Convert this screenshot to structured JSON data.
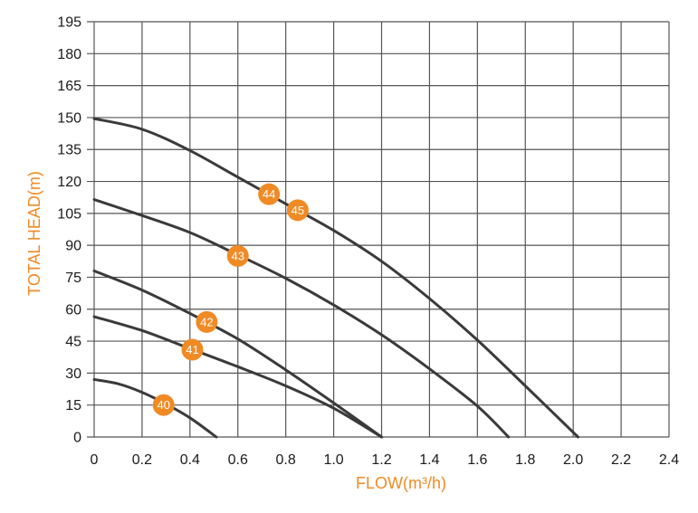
{
  "chart_data": {
    "type": "line",
    "xlabel": "FLOW(m³/h)",
    "ylabel": "TOTAL HEAD(m)",
    "xlim": [
      0,
      2.4
    ],
    "ylim": [
      0,
      195
    ],
    "x_ticks": [
      "0",
      "0.2",
      "0.4",
      "0.6",
      "0.8",
      "1.0",
      "1.2",
      "1.4",
      "1.6",
      "1.8",
      "2.0",
      "2.2",
      "2.4"
    ],
    "y_ticks": [
      "0",
      "15",
      "30",
      "45",
      "60",
      "75",
      "90",
      "105",
      "120",
      "135",
      "150",
      "165",
      "180",
      "195"
    ],
    "grid": true,
    "series": [
      {
        "name": "40",
        "label_at": [
          0.29,
          15
        ],
        "points": [
          [
            0,
            27
          ],
          [
            0.1,
            25
          ],
          [
            0.2,
            21
          ],
          [
            0.3,
            15.5
          ],
          [
            0.4,
            9
          ],
          [
            0.51,
            0
          ]
        ]
      },
      {
        "name": "41",
        "label_at": [
          0.41,
          41
        ],
        "points": [
          [
            0,
            56.5
          ],
          [
            0.2,
            50
          ],
          [
            0.4,
            41.5
          ],
          [
            0.6,
            33
          ],
          [
            0.8,
            24
          ],
          [
            1.0,
            13.5
          ],
          [
            1.2,
            0
          ]
        ]
      },
      {
        "name": "42",
        "label_at": [
          0.47,
          54
        ],
        "points": [
          [
            0,
            78
          ],
          [
            0.2,
            69
          ],
          [
            0.4,
            58
          ],
          [
            0.6,
            46
          ],
          [
            0.8,
            31.5
          ],
          [
            1.0,
            16
          ],
          [
            1.2,
            0
          ]
        ]
      },
      {
        "name": "43",
        "label_at": [
          0.6,
          85
        ],
        "points": [
          [
            0,
            111.5
          ],
          [
            0.2,
            104
          ],
          [
            0.4,
            96
          ],
          [
            0.6,
            85.5
          ],
          [
            0.8,
            74.5
          ],
          [
            1.0,
            62
          ],
          [
            1.2,
            48
          ],
          [
            1.4,
            32
          ],
          [
            1.6,
            14.5
          ],
          [
            1.73,
            0
          ]
        ]
      },
      {
        "name": "44",
        "label_at": [
          0.73,
          114
        ],
        "points": [
          [
            0,
            149.5
          ],
          [
            0.2,
            144.5
          ],
          [
            0.4,
            134.5
          ],
          [
            0.6,
            122
          ],
          [
            0.8,
            109.5
          ],
          [
            1.0,
            97
          ],
          [
            1.2,
            82.5
          ],
          [
            1.4,
            65
          ],
          [
            1.6,
            45.5
          ],
          [
            1.8,
            24
          ],
          [
            2.02,
            0
          ]
        ]
      },
      {
        "name": "45",
        "label_at": [
          0.85,
          106.5
        ],
        "points": []
      }
    ],
    "colors": {
      "curve": "#3a3a3c",
      "grid": "#555555",
      "axis_title": "#f08a24",
      "badge": "#f08a24",
      "badge_text": "#ffffff"
    }
  }
}
